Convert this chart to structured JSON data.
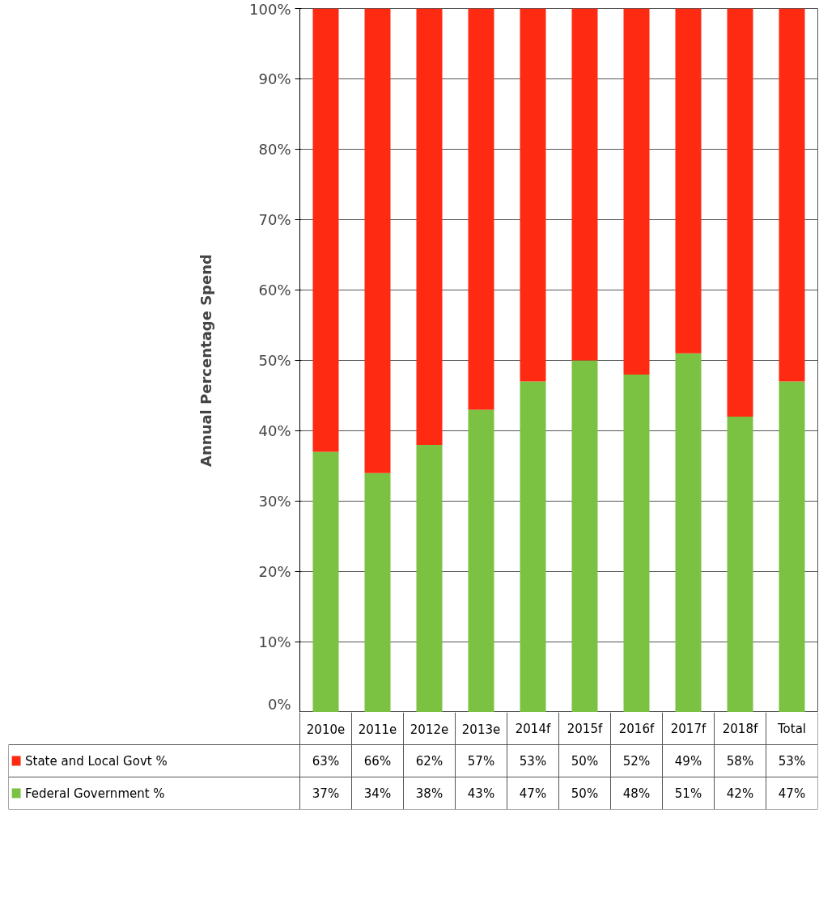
{
  "chart_data": {
    "type": "bar",
    "stacked": true,
    "ylabel": "Annual Percentage Spend",
    "categories": [
      "2010e",
      "2011e",
      "2012e",
      "2013e",
      "2014f",
      "2015f",
      "2016f",
      "2017f",
      "2018f",
      "Total"
    ],
    "series": [
      {
        "name": "Federal Government %",
        "color": "#7cc242",
        "values": [
          37,
          34,
          38,
          43,
          47,
          50,
          48,
          51,
          42,
          47
        ],
        "value_labels": [
          "37%",
          "34%",
          "38%",
          "43%",
          "47%",
          "50%",
          "48%",
          "51%",
          "42%",
          "47%"
        ]
      },
      {
        "name": "State and Local Govt %",
        "color": "#fe2a12",
        "values": [
          63,
          66,
          62,
          57,
          53,
          50,
          52,
          49,
          58,
          53
        ],
        "value_labels": [
          "63%",
          "66%",
          "62%",
          "57%",
          "53%",
          "50%",
          "52%",
          "49%",
          "58%",
          "53%"
        ]
      }
    ],
    "ylim": [
      0,
      100
    ],
    "yticks": [
      {
        "value": 0,
        "label": "0%"
      },
      {
        "value": 10,
        "label": "10%"
      },
      {
        "value": 20,
        "label": "20%"
      },
      {
        "value": 30,
        "label": "30%"
      },
      {
        "value": 40,
        "label": "40%"
      },
      {
        "value": 50,
        "label": "50%"
      },
      {
        "value": 60,
        "label": "60%"
      },
      {
        "value": 70,
        "label": "70%"
      },
      {
        "value": 80,
        "label": "80%"
      },
      {
        "value": 90,
        "label": "90%"
      },
      {
        "value": 100,
        "label": "100%"
      }
    ],
    "grid": "y",
    "legend": "bottom left"
  }
}
